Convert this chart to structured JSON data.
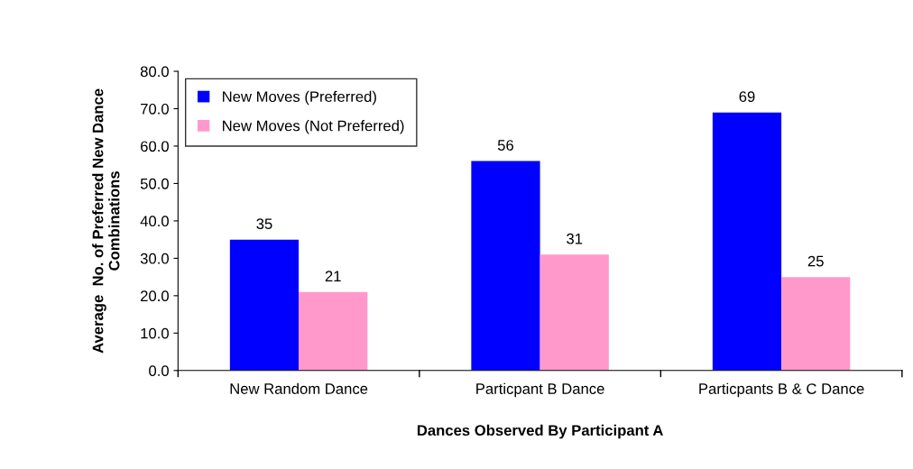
{
  "chart_data": {
    "type": "bar",
    "xlabel": "Dances Observed By Participant A",
    "ylabel": "Average  No. of Preferred New Dance\nCombinations",
    "categories": [
      "New Random Dance",
      "Particpant B Dance",
      "Particpants B & C Dance"
    ],
    "series": [
      {
        "name": "New Moves (Preferred)",
        "color": "#0000ff",
        "values": [
          35,
          56,
          69
        ]
      },
      {
        "name": "New Moves (Not Preferred)",
        "color": "#ff99cc",
        "values": [
          21,
          31,
          25
        ]
      }
    ],
    "ylim": [
      0,
      80
    ],
    "yticks": [
      {
        "value": 0,
        "label": "0.0"
      },
      {
        "value": 10,
        "label": "10.0"
      },
      {
        "value": 20,
        "label": "20.0"
      },
      {
        "value": 30,
        "label": "30.0"
      },
      {
        "value": 40,
        "label": "40.0"
      },
      {
        "value": 50,
        "label": "50.0"
      },
      {
        "value": 60,
        "label": "60.0"
      },
      {
        "value": 70,
        "label": "70.0"
      },
      {
        "value": 80,
        "label": "80.0"
      }
    ],
    "data_labels": true,
    "grid": false,
    "legend": "top left"
  }
}
